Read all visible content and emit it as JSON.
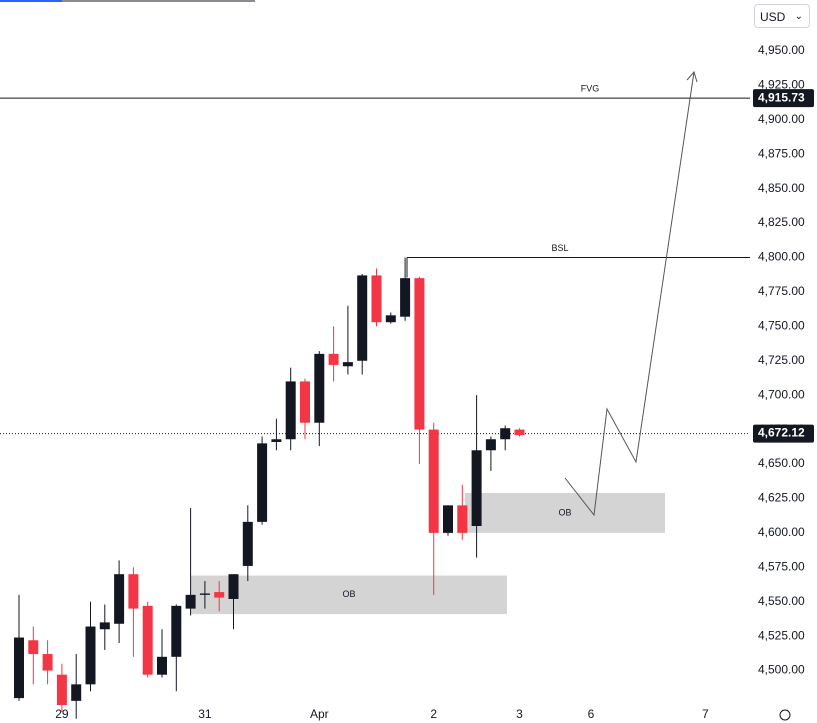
{
  "chart_data": {
    "type": "candlestick",
    "currency": "USD",
    "categories": [
      null,
      null,
      null,
      "29",
      null,
      null,
      null,
      null,
      null,
      null,
      null,
      null,
      null,
      "31",
      null,
      null,
      null,
      null,
      null,
      null,
      null,
      "Apr",
      null,
      null,
      null,
      null,
      null,
      null,
      null,
      "2",
      null,
      null,
      null,
      null,
      null,
      "3",
      null,
      null,
      null,
      null,
      "6",
      null,
      null,
      null,
      null,
      null,
      null,
      null,
      "7",
      null,
      null,
      null
    ],
    "open": [
      4480,
      4522,
      4512,
      4497,
      4478,
      4490,
      4530,
      4534,
      4570,
      4547,
      4497,
      4510,
      4545,
      4555,
      4557,
      4552,
      4576,
      4608,
      4666,
      4668,
      4710,
      4680,
      4730,
      4721,
      4725,
      4787,
      4753,
      4757,
      4785,
      4675,
      4600,
      4620,
      4605,
      4660,
      4668,
      4675,
      null,
      null,
      null,
      null,
      null,
      null,
      null,
      null,
      null,
      null,
      null,
      null,
      null,
      null,
      null,
      null
    ],
    "high": [
      4555,
      4532,
      4522,
      4505,
      4512,
      4550,
      4548,
      4580,
      4575,
      4550,
      4530,
      4548,
      4618,
      4565,
      4565,
      4570,
      4620,
      4670,
      4683,
      4720,
      4712,
      4732,
      4750,
      4765,
      4788,
      4792,
      4760,
      4800,
      4786,
      4680,
      4620,
      4635,
      4700,
      4670,
      4678,
      4676,
      null,
      null,
      null,
      null,
      null,
      null,
      null,
      null,
      null,
      null,
      null,
      null,
      null,
      null,
      null,
      null
    ],
    "low": [
      4478,
      4490,
      4490,
      4470,
      4465,
      4485,
      4515,
      4520,
      4510,
      4495,
      4495,
      4485,
      4540,
      4545,
      4543,
      4530,
      4565,
      4606,
      4660,
      4660,
      4668,
      4663,
      4710,
      4715,
      4715,
      4750,
      4752,
      4754,
      4650,
      4555,
      4598,
      4595,
      4582,
      4645,
      4660,
      4670,
      null,
      null,
      null,
      null,
      null,
      null,
      null,
      null,
      null,
      null,
      null,
      null,
      null,
      null,
      null,
      null
    ],
    "close": [
      4524,
      4512,
      4500,
      4475,
      4490,
      4532,
      4535,
      4570,
      4545,
      4497,
      4510,
      4547,
      4555,
      4556,
      4553,
      4570,
      4608,
      4665,
      4668,
      4710,
      4680,
      4730,
      4722,
      4724,
      4787,
      4753,
      4758,
      4785,
      4675,
      4600,
      4620,
      4600,
      4660,
      4668,
      4676,
      4671,
      null,
      null,
      null,
      null,
      null,
      null,
      null,
      null,
      null,
      null,
      null,
      null,
      null,
      null,
      null,
      null
    ],
    "up_color": "#131722",
    "down_color": "#f23645",
    "ylim": [
      4475,
      4987
    ],
    "yticks": [
      {
        "value": 4500,
        "label": "4,500.00"
      },
      {
        "value": 4525,
        "label": "4,525.00"
      },
      {
        "value": 4550,
        "label": "4,550.00"
      },
      {
        "value": 4575,
        "label": "4,575.00"
      },
      {
        "value": 4600,
        "label": "4,600.00"
      },
      {
        "value": 4625,
        "label": "4,625.00"
      },
      {
        "value": 4650,
        "label": "4,650.00"
      },
      {
        "value": 4675,
        "label": "4,675.00"
      },
      {
        "value": 4700,
        "label": "4,700.00"
      },
      {
        "value": 4725,
        "label": "4,725.00"
      },
      {
        "value": 4750,
        "label": "4,750.00"
      },
      {
        "value": 4775,
        "label": "4,775.00"
      },
      {
        "value": 4800,
        "label": "4,800.00"
      },
      {
        "value": 4825,
        "label": "4,825.00"
      },
      {
        "value": 4850,
        "label": "4,850.00"
      },
      {
        "value": 4875,
        "label": "4,875.00"
      },
      {
        "value": 4900,
        "label": "4,900.00"
      },
      {
        "value": 4925,
        "label": "4,925.00"
      },
      {
        "value": 4950,
        "label": "4,950.00"
      }
    ],
    "levels": [
      {
        "name": "FVG",
        "value": 4915.73,
        "label": "4,915.73"
      },
      {
        "name": "BSL",
        "value": 4800
      }
    ],
    "last_price": {
      "value": 4672.12,
      "label": "4,672.12"
    },
    "zones": [
      {
        "name": "OB",
        "low": 4541,
        "high": 4569
      },
      {
        "name": "OB",
        "low": 4600,
        "high": 4629
      }
    ]
  }
}
